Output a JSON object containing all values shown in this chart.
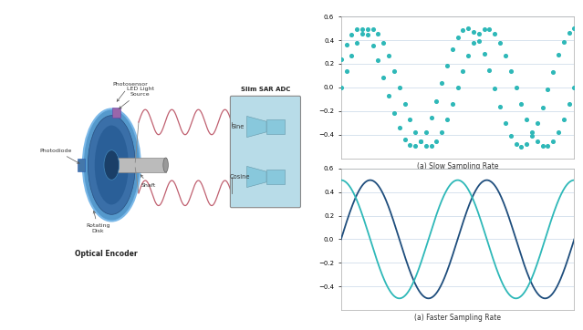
{
  "fig_width": 6.39,
  "fig_height": 3.62,
  "background_color": "#ffffff",
  "plot1_title": "(a) Slow Sampling Rate",
  "plot2_title": "(a) Faster Sampling Rate",
  "ylim": [
    -0.6,
    0.6
  ],
  "yticks": [
    -0.4,
    -0.2,
    0.0,
    0.2,
    0.4,
    0.6
  ],
  "slow_color": "#2eb8b8",
  "fast_sine_color": "#1f4e7d",
  "fast_cosine_color": "#2eb8b8",
  "grid_color": "#c8d8e8",
  "axis_color": "#aaaaaa",
  "sine_amplitude": 0.5,
  "num_slow_points": 45,
  "num_fast_points": 500,
  "encoder_label": "Optical Encoder",
  "photosensor_label": "Photosensor",
  "led_label": "LED Light\nSource",
  "photodiode_label": "Photodiode",
  "shaft_label": "Shaft",
  "disk_label": "Rotating\nDisk",
  "adc_label": "Slim SAR ADC",
  "sine_label": "Sine",
  "cosine_label": "Cosine",
  "wave_color": "#c06070",
  "adc_bg_color": "#b8dce8",
  "adc_border_color": "#888888",
  "funnel_color": "#88c8dc"
}
